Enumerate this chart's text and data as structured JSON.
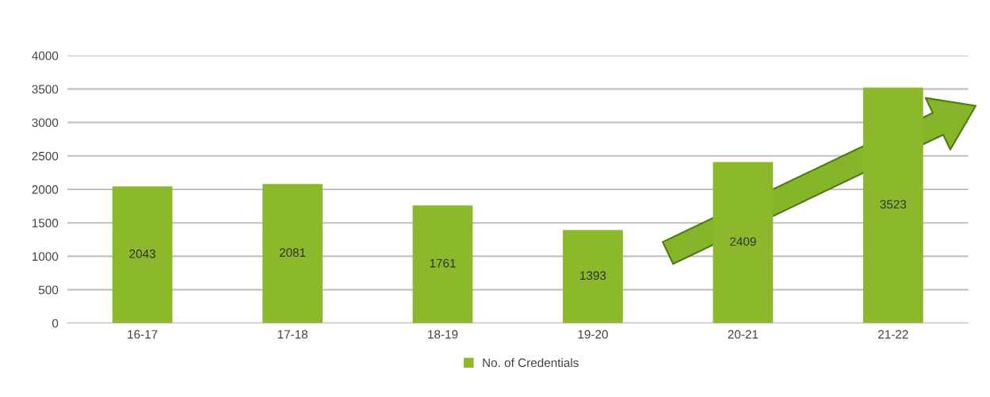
{
  "chart_data": {
    "type": "bar",
    "categories": [
      "16-17",
      "17-18",
      "18-19",
      "19-20",
      "20-21",
      "21-22"
    ],
    "series": [
      {
        "name": "No. of Credentials",
        "color": "#8cb82b",
        "values": [
          2043,
          2081,
          1761,
          1393,
          2409,
          3523
        ]
      }
    ],
    "ylim": [
      0,
      4000
    ],
    "yticks": [
      0,
      500,
      1000,
      1500,
      2000,
      2500,
      3000,
      3500,
      4000
    ],
    "grid": "y",
    "legend": "bottom",
    "data_labels": true
  }
}
